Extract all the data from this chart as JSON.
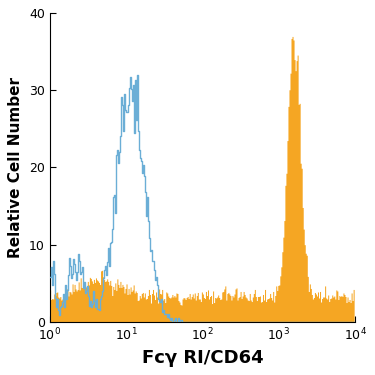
{
  "title": "",
  "xlabel": "Fcγ RI/CD64",
  "ylabel": "Relative Cell Number",
  "xlim_log": [
    1,
    10000
  ],
  "ylim": [
    0,
    40
  ],
  "yticks": [
    0,
    10,
    20,
    30,
    40
  ],
  "background_color": "#ffffff",
  "blue_color": "#6baed6",
  "orange_color": "#f5a623",
  "xlabel_fontsize": 13,
  "ylabel_fontsize": 11,
  "n_bins": 300
}
